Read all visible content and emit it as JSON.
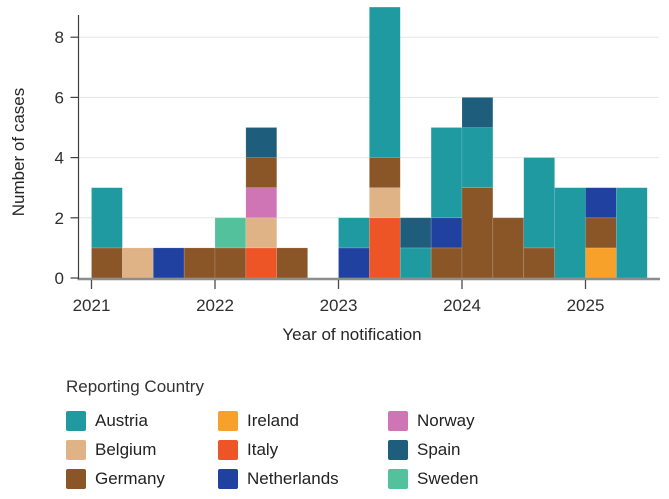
{
  "chart_data": {
    "type": "bar",
    "stacked": true,
    "title": "",
    "xlabel": "Year of notification",
    "ylabel": "Number of cases",
    "x_ticks": [
      2021,
      2022,
      2023,
      2024,
      2025
    ],
    "y_ticks": [
      0,
      2,
      4,
      6,
      8
    ],
    "ylim": [
      0,
      9
    ],
    "bar_unit": "quarter",
    "grid": "horizontal",
    "legend": {
      "title": "Reporting Country",
      "position": "bottom",
      "entries": [
        {
          "label": "Austria",
          "color": "#1e9aa0"
        },
        {
          "label": "Belgium",
          "color": "#e0b387"
        },
        {
          "label": "Germany",
          "color": "#8a5628"
        },
        {
          "label": "Ireland",
          "color": "#f7a12b"
        },
        {
          "label": "Italy",
          "color": "#ee5526"
        },
        {
          "label": "Netherlands",
          "color": "#20419f"
        },
        {
          "label": "Norway",
          "color": "#cf74b5"
        },
        {
          "label": "Spain",
          "color": "#1e5e7c"
        },
        {
          "label": "Sweden",
          "color": "#52c19c"
        }
      ]
    },
    "bars": [
      {
        "year": 2021,
        "quarter": 1,
        "segments": [
          {
            "country": "Germany",
            "cases": 1
          },
          {
            "country": "Austria",
            "cases": 2
          }
        ]
      },
      {
        "year": 2021,
        "quarter": 2,
        "segments": [
          {
            "country": "Belgium",
            "cases": 1
          }
        ]
      },
      {
        "year": 2021,
        "quarter": 3,
        "segments": [
          {
            "country": "Netherlands",
            "cases": 1
          }
        ]
      },
      {
        "year": 2021,
        "quarter": 4,
        "segments": [
          {
            "country": "Germany",
            "cases": 1
          }
        ]
      },
      {
        "year": 2022,
        "quarter": 1,
        "segments": [
          {
            "country": "Germany",
            "cases": 1
          },
          {
            "country": "Sweden",
            "cases": 1
          }
        ]
      },
      {
        "year": 2022,
        "quarter": 2,
        "segments": [
          {
            "country": "Italy",
            "cases": 1
          },
          {
            "country": "Belgium",
            "cases": 1
          },
          {
            "country": "Norway",
            "cases": 1
          },
          {
            "country": "Germany",
            "cases": 1
          },
          {
            "country": "Spain",
            "cases": 1
          }
        ]
      },
      {
        "year": 2022,
        "quarter": 3,
        "segments": [
          {
            "country": "Germany",
            "cases": 1
          }
        ]
      },
      {
        "year": 2023,
        "quarter": 1,
        "segments": [
          {
            "country": "Netherlands",
            "cases": 1
          },
          {
            "country": "Austria",
            "cases": 1
          }
        ]
      },
      {
        "year": 2023,
        "quarter": 2,
        "segments": [
          {
            "country": "Italy",
            "cases": 2
          },
          {
            "country": "Belgium",
            "cases": 1
          },
          {
            "country": "Germany",
            "cases": 1
          },
          {
            "country": "Austria",
            "cases": 5
          }
        ]
      },
      {
        "year": 2023,
        "quarter": 3,
        "segments": [
          {
            "country": "Austria",
            "cases": 1
          },
          {
            "country": "Spain",
            "cases": 1
          }
        ]
      },
      {
        "year": 2023,
        "quarter": 4,
        "segments": [
          {
            "country": "Germany",
            "cases": 1
          },
          {
            "country": "Netherlands",
            "cases": 1
          },
          {
            "country": "Austria",
            "cases": 3
          }
        ]
      },
      {
        "year": 2024,
        "quarter": 1,
        "segments": [
          {
            "country": "Germany",
            "cases": 3
          },
          {
            "country": "Austria",
            "cases": 2
          },
          {
            "country": "Spain",
            "cases": 1
          }
        ]
      },
      {
        "year": 2024,
        "quarter": 2,
        "segments": [
          {
            "country": "Germany",
            "cases": 2
          }
        ]
      },
      {
        "year": 2024,
        "quarter": 3,
        "segments": [
          {
            "country": "Germany",
            "cases": 1
          },
          {
            "country": "Austria",
            "cases": 3
          }
        ]
      },
      {
        "year": 2024,
        "quarter": 4,
        "segments": [
          {
            "country": "Austria",
            "cases": 3
          }
        ]
      },
      {
        "year": 2025,
        "quarter": 1,
        "segments": [
          {
            "country": "Ireland",
            "cases": 1
          },
          {
            "country": "Germany",
            "cases": 1
          },
          {
            "country": "Netherlands",
            "cases": 1
          }
        ]
      },
      {
        "year": 2025,
        "quarter": 2,
        "segments": [
          {
            "country": "Austria",
            "cases": 3
          }
        ]
      }
    ]
  },
  "colors": {
    "axis_line": "#3f3f3f",
    "baseline": "#8d8d8d",
    "gridline": "#e6e6e6",
    "tick_text": "#2f2f2f",
    "title_text": "#262626"
  }
}
